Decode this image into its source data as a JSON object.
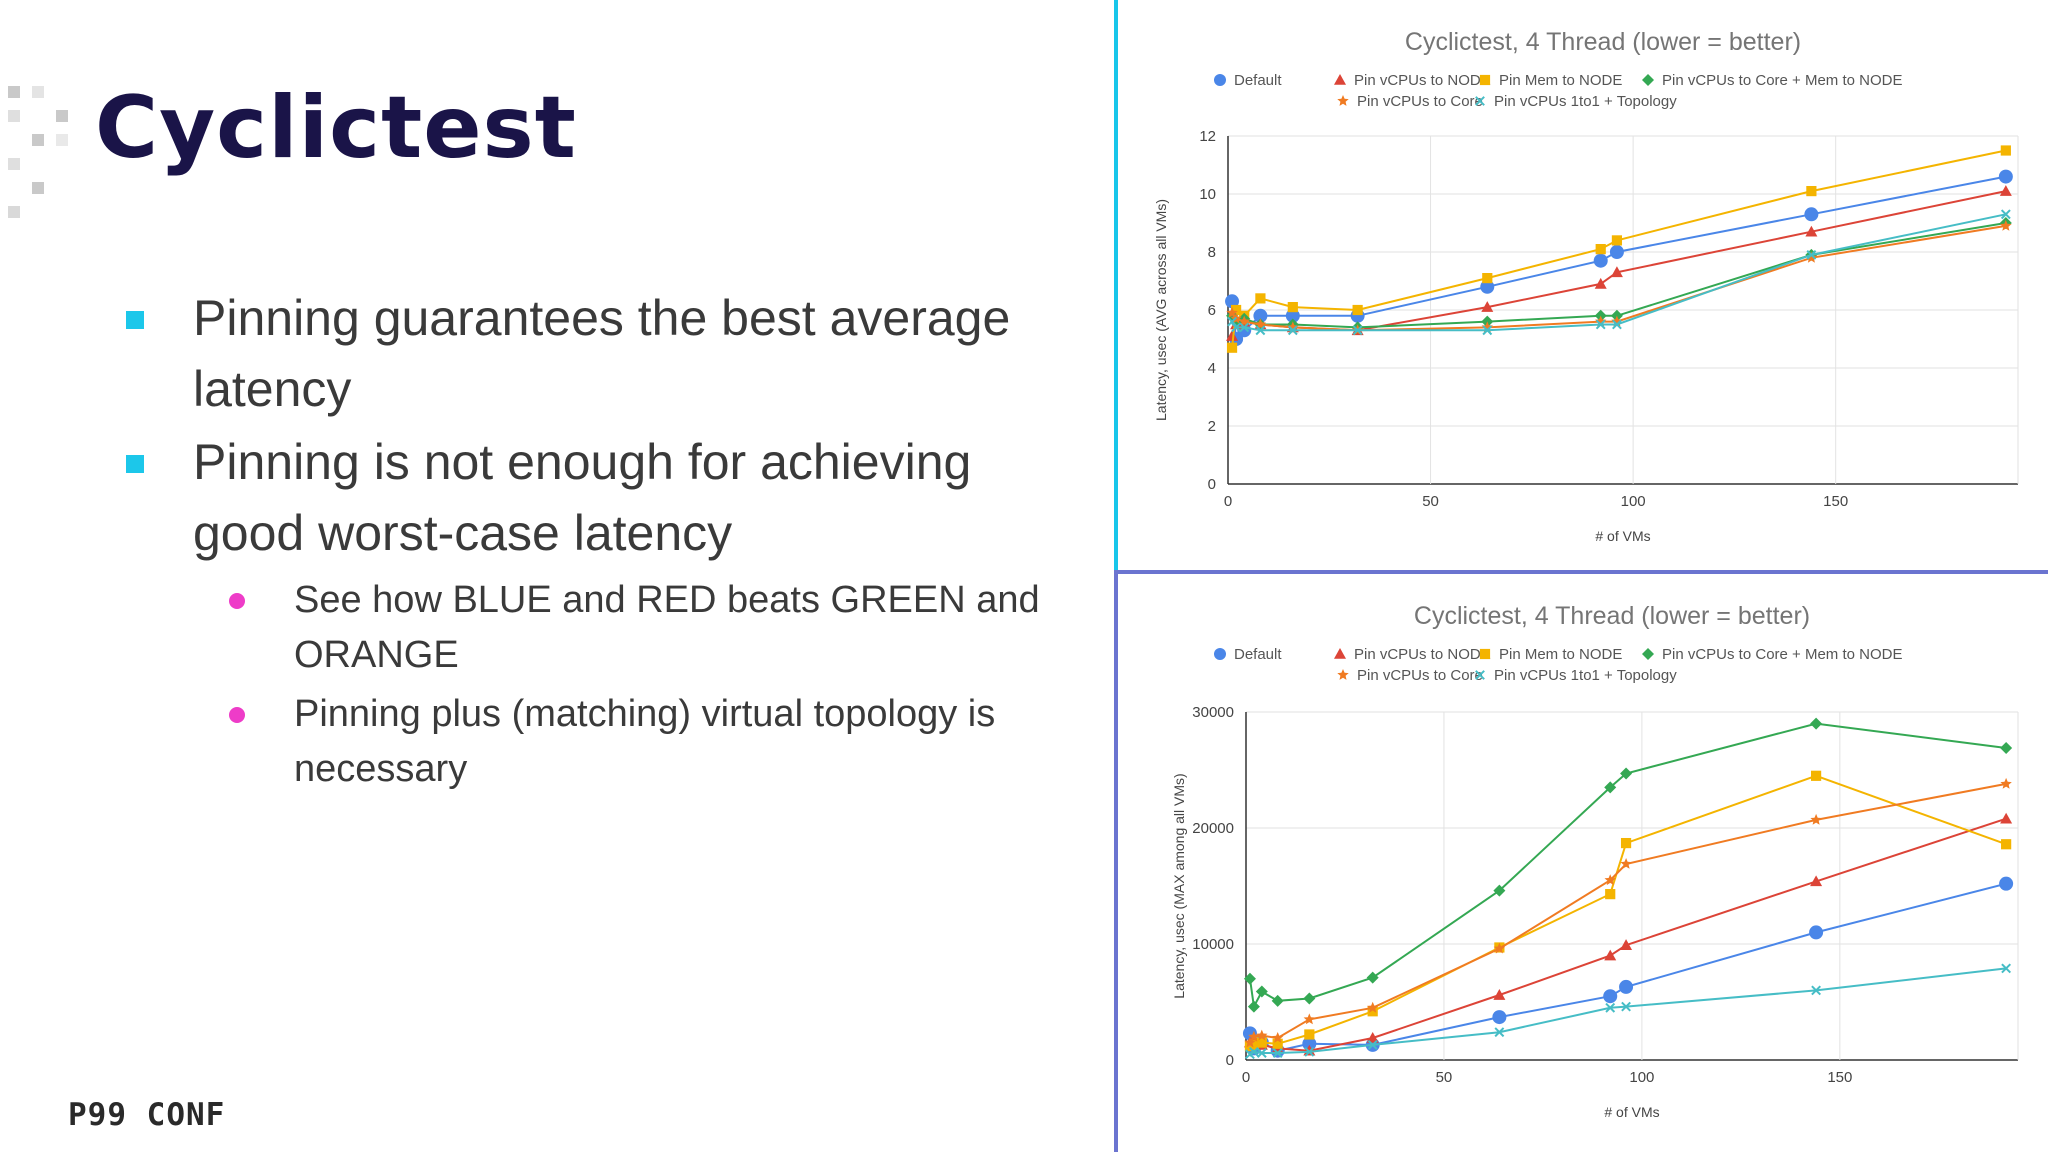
{
  "slide": {
    "title": "Cyclictest",
    "bullets": [
      {
        "text": "Pinning guarantees the best average latency"
      },
      {
        "text": "Pinning is not enough for achieving good worst-case latency",
        "sub": [
          {
            "text": "See how BLUE and RED beats GREEN and ORANGE"
          },
          {
            "text": "Pinning plus (matching) virtual topology is necessary"
          }
        ]
      }
    ],
    "logo": "P99 CONF",
    "colors": {
      "title": "#1a1448",
      "bullet_square": "#1cc7ea",
      "bullet_dot": "#ee3cc8",
      "divider_top": "#18c6ea",
      "divider_bottom": "#6b74d0"
    }
  },
  "chart_data": [
    {
      "type": "line",
      "title": "Cyclictest, 4 Thread (lower = better)",
      "xlabel": "# of VMs",
      "ylabel": "Latency, usec (AVG across all VMs)",
      "xlim": [
        0,
        195
      ],
      "ylim": [
        0,
        12
      ],
      "xticks": [
        0,
        50,
        100,
        150
      ],
      "yticks": [
        0,
        2,
        4,
        6,
        8,
        10,
        12
      ],
      "grid": true,
      "legend": "top",
      "series": [
        {
          "name": "Default",
          "color": "#4a86e8",
          "marker": "circle",
          "x": [
            1,
            2,
            4,
            8,
            16,
            32,
            64,
            92,
            96,
            144,
            192
          ],
          "y": [
            6.3,
            5.0,
            5.3,
            5.8,
            5.8,
            5.8,
            6.8,
            7.7,
            8.0,
            9.3,
            10.6
          ]
        },
        {
          "name": "Pin vCPUs to NODE",
          "color": "#dc4437",
          "marker": "triangle",
          "x": [
            1,
            2,
            4,
            8,
            16,
            32,
            64,
            92,
            96,
            144,
            192
          ],
          "y": [
            5.1,
            5.5,
            5.6,
            5.5,
            5.4,
            5.3,
            6.1,
            6.9,
            7.3,
            8.7,
            10.1
          ]
        },
        {
          "name": "Pin Mem to NODE",
          "color": "#f4b400",
          "marker": "square",
          "x": [
            1,
            2,
            4,
            8,
            16,
            32,
            64,
            92,
            96,
            144,
            192
          ],
          "y": [
            4.7,
            6.0,
            5.8,
            6.4,
            6.1,
            6.0,
            7.1,
            8.1,
            8.4,
            10.1,
            11.5
          ]
        },
        {
          "name": "Pin vCPUs to Core + Mem to NODE",
          "color": "#34a853",
          "marker": "diamond",
          "x": [
            1,
            2,
            4,
            8,
            16,
            32,
            64,
            92,
            96,
            144,
            192
          ],
          "y": [
            5.8,
            5.6,
            5.7,
            5.5,
            5.5,
            5.4,
            5.6,
            5.8,
            5.8,
            7.9,
            9.0
          ]
        },
        {
          "name": "Pin vCPUs to Core",
          "color": "#f07b22",
          "marker": "star",
          "x": [
            1,
            2,
            4,
            8,
            16,
            32,
            64,
            92,
            96,
            144,
            192
          ],
          "y": [
            5.9,
            5.7,
            5.6,
            5.5,
            5.4,
            5.3,
            5.4,
            5.6,
            5.6,
            7.8,
            8.9
          ]
        },
        {
          "name": "Pin vCPUs 1to1 + Topology",
          "color": "#46bdc6",
          "marker": "x",
          "x": [
            1,
            2,
            4,
            8,
            16,
            32,
            64,
            92,
            96,
            144,
            192
          ],
          "y": [
            5.6,
            5.4,
            5.4,
            5.3,
            5.3,
            5.3,
            5.3,
            5.5,
            5.5,
            7.9,
            9.3
          ]
        }
      ]
    },
    {
      "type": "line",
      "title": "Cyclictest, 4 Thread (lower = better)",
      "xlabel": "# of VMs",
      "ylabel": "Latency, usec (MAX among all VMs)",
      "xlim": [
        0,
        195
      ],
      "ylim": [
        0,
        30000
      ],
      "xticks": [
        0,
        50,
        100,
        150
      ],
      "yticks": [
        0,
        10000,
        20000,
        30000
      ],
      "grid": true,
      "legend": "top",
      "series": [
        {
          "name": "Default",
          "color": "#4a86e8",
          "marker": "circle",
          "x": [
            1,
            2,
            4,
            8,
            16,
            32,
            64,
            92,
            96,
            144,
            192
          ],
          "y": [
            2300,
            1000,
            1500,
            800,
            1400,
            1300,
            3700,
            5500,
            6300,
            11000,
            15200
          ]
        },
        {
          "name": "Pin vCPUs to NODE",
          "color": "#dc4437",
          "marker": "triangle",
          "x": [
            1,
            2,
            4,
            8,
            16,
            32,
            64,
            92,
            96,
            144,
            192
          ],
          "y": [
            1500,
            1800,
            1300,
            1000,
            800,
            1900,
            5600,
            9000,
            9900,
            15400,
            20800
          ]
        },
        {
          "name": "Pin Mem to NODE",
          "color": "#f4b400",
          "marker": "square",
          "x": [
            1,
            2,
            4,
            8,
            16,
            32,
            64,
            92,
            96,
            144,
            192
          ],
          "y": [
            1200,
            1300,
            1500,
            1400,
            2200,
            4200,
            9700,
            14300,
            18700,
            24500,
            18600
          ]
        },
        {
          "name": "Pin vCPUs to Core + Mem to NODE",
          "color": "#34a853",
          "marker": "diamond",
          "x": [
            1,
            2,
            4,
            8,
            16,
            32,
            64,
            92,
            96,
            144,
            192
          ],
          "y": [
            7000,
            4600,
            5900,
            5100,
            5300,
            7100,
            14600,
            23500,
            24700,
            29000,
            26900
          ]
        },
        {
          "name": "Pin vCPUs to Core",
          "color": "#f07b22",
          "marker": "star",
          "x": [
            1,
            2,
            4,
            8,
            16,
            32,
            64,
            92,
            96,
            144,
            192
          ],
          "y": [
            1500,
            2000,
            2100,
            1900,
            3500,
            4500,
            9600,
            15500,
            16900,
            20700,
            23800
          ]
        },
        {
          "name": "Pin vCPUs 1to1 + Topology",
          "color": "#46bdc6",
          "marker": "x",
          "x": [
            1,
            2,
            4,
            8,
            16,
            32,
            64,
            92,
            96,
            144,
            192
          ],
          "y": [
            500,
            700,
            600,
            600,
            700,
            1300,
            2400,
            4500,
            4600,
            6000,
            7900
          ]
        }
      ]
    }
  ]
}
